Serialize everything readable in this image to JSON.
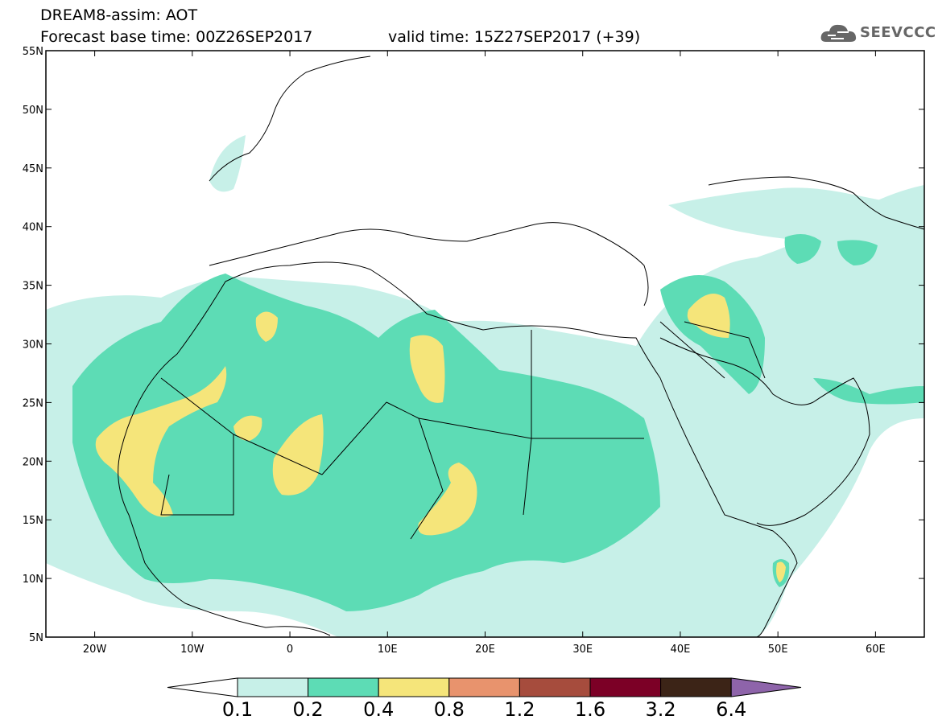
{
  "header": {
    "line1": "DREAM8-assim: AOT",
    "line2": "Forecast base time: 00Z26SEP2017",
    "line3": "valid time: 15Z27SEP2017 (+39)"
  },
  "logo": {
    "text": "SEEVCCC",
    "icon": "cloud-icon"
  },
  "map": {
    "lon_range": [
      -25,
      65
    ],
    "lat_range": [
      5,
      55
    ],
    "x_ticks": [
      "20W",
      "10W",
      "0",
      "10E",
      "20E",
      "30E",
      "40E",
      "50E",
      "60E"
    ],
    "y_ticks": [
      "55N",
      "50N",
      "45N",
      "40N",
      "35N",
      "30N",
      "25N",
      "20N",
      "15N",
      "10N",
      "5N"
    ]
  },
  "colorbar": {
    "labels": [
      "0.1",
      "0.2",
      "0.4",
      "0.8",
      "1.2",
      "1.6",
      "3.2",
      "6.4"
    ],
    "colors": [
      "#ffffff",
      "#c7f0e8",
      "#5ddcb5",
      "#f5e57a",
      "#e8936d",
      "#a64c3d",
      "#7c0026",
      "#3c2417",
      "#8e64aa"
    ]
  }
}
